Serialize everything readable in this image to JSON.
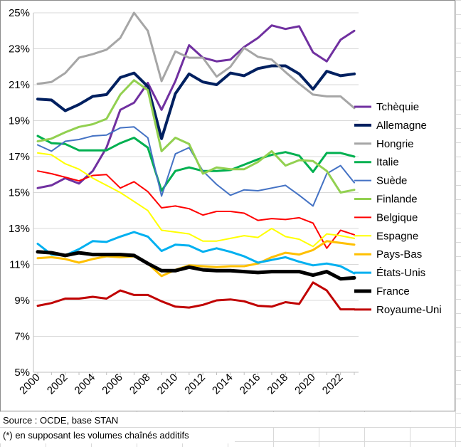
{
  "chart_data": {
    "type": "line",
    "title": "",
    "xlabel": "",
    "ylabel": "",
    "ylim": [
      5,
      25
    ],
    "y_ticks": [
      "5%",
      "7%",
      "9%",
      "11%",
      "13%",
      "15%",
      "17%",
      "19%",
      "21%",
      "23%",
      "25%"
    ],
    "x_ticks": [
      "2000",
      "2002",
      "2004",
      "2006",
      "2008",
      "2010",
      "2012",
      "2014",
      "2016",
      "2018",
      "2020",
      "2022"
    ],
    "x": [
      2000,
      2001,
      2002,
      2003,
      2004,
      2005,
      2006,
      2007,
      2008,
      2009,
      2010,
      2011,
      2012,
      2013,
      2014,
      2015,
      2016,
      2017,
      2018,
      2019,
      2020,
      2021,
      2022,
      2023
    ],
    "grid": true,
    "legend_position": "right",
    "series": [
      {
        "name": "Tchèquie",
        "color": "#7030a0",
        "width": 3,
        "values": [
          15.25,
          15.4,
          15.8,
          15.5,
          16.2,
          17.5,
          19.6,
          20.0,
          21.1,
          19.6,
          21.2,
          23.2,
          22.5,
          22.3,
          22.4,
          23.1,
          23.6,
          24.3,
          24.1,
          24.25,
          22.8,
          22.3,
          23.5,
          24.0
        ]
      },
      {
        "name": "Allemagne",
        "color": "#002060",
        "width": 4,
        "values": [
          20.2,
          20.15,
          19.55,
          19.9,
          20.35,
          20.45,
          21.4,
          21.65,
          20.9,
          18.0,
          20.5,
          21.6,
          21.15,
          21.0,
          21.65,
          21.5,
          21.9,
          22.05,
          22.05,
          21.6,
          20.75,
          21.75,
          21.5,
          21.6
        ]
      },
      {
        "name": "Hongrie",
        "color": "#a6a6a6",
        "width": 3,
        "values": [
          21.05,
          21.15,
          21.65,
          22.5,
          22.7,
          22.95,
          23.6,
          25.0,
          24.0,
          21.2,
          22.85,
          22.5,
          22.5,
          21.45,
          22.0,
          23.05,
          22.55,
          22.4,
          21.7,
          21.05,
          20.45,
          20.35,
          20.35,
          19.7
        ]
      },
      {
        "name": "Italie",
        "color": "#00b050",
        "width": 3,
        "values": [
          18.15,
          17.75,
          17.7,
          17.35,
          17.35,
          17.35,
          17.75,
          18.05,
          17.5,
          15.1,
          16.2,
          16.4,
          16.2,
          16.2,
          16.25,
          16.55,
          16.85,
          17.1,
          17.25,
          17.05,
          16.15,
          17.2,
          17.2,
          17.0
        ]
      },
      {
        "name": "Suède",
        "color": "#4472c4",
        "width": 2,
        "values": [
          17.65,
          17.3,
          17.85,
          17.95,
          18.15,
          18.2,
          18.6,
          18.65,
          18.05,
          14.8,
          17.15,
          17.5,
          16.2,
          15.45,
          14.85,
          15.15,
          15.1,
          15.25,
          15.4,
          14.85,
          14.25,
          16.05,
          16.5,
          15.55
        ]
      },
      {
        "name": "Finlande",
        "color": "#92d050",
        "width": 3,
        "values": [
          17.85,
          18.0,
          18.35,
          18.65,
          18.8,
          19.1,
          20.45,
          21.25,
          20.7,
          17.3,
          18.05,
          17.7,
          16.05,
          16.4,
          16.3,
          16.3,
          16.7,
          17.3,
          16.5,
          16.8,
          16.75,
          16.2,
          15.0,
          15.15
        ]
      },
      {
        "name": "Belgique",
        "color": "#ff0000",
        "width": 2,
        "values": [
          16.2,
          16.05,
          15.85,
          15.65,
          15.95,
          16.0,
          15.25,
          15.6,
          15.05,
          14.15,
          14.25,
          14.1,
          13.75,
          13.95,
          13.95,
          13.85,
          13.45,
          13.55,
          13.5,
          13.6,
          13.3,
          11.9,
          12.9,
          12.65
        ]
      },
      {
        "name": "Espagne",
        "color": "#ffff00",
        "width": 2,
        "values": [
          17.2,
          17.1,
          16.6,
          16.3,
          15.8,
          15.4,
          15.0,
          14.5,
          14.0,
          12.9,
          12.8,
          12.7,
          12.3,
          12.3,
          12.45,
          12.6,
          12.5,
          13.0,
          12.55,
          12.4,
          12.0,
          12.7,
          12.6,
          12.45
        ]
      },
      {
        "name": "Pays-Bas",
        "color": "#ffc000",
        "width": 3,
        "values": [
          11.35,
          11.4,
          11.3,
          11.1,
          11.3,
          11.45,
          11.4,
          11.45,
          11.05,
          10.35,
          10.7,
          10.95,
          10.9,
          10.85,
          10.9,
          10.9,
          11.05,
          11.4,
          11.65,
          11.55,
          11.8,
          12.3,
          12.2,
          12.1
        ]
      },
      {
        "name": "États-Unis",
        "color": "#00b0f0",
        "width": 3,
        "values": [
          12.15,
          11.55,
          11.5,
          11.85,
          12.3,
          12.25,
          12.55,
          12.8,
          12.55,
          11.75,
          12.1,
          12.05,
          11.7,
          11.9,
          11.7,
          11.45,
          11.1,
          11.25,
          11.4,
          11.15,
          10.95,
          11.05,
          10.9,
          10.5
        ]
      },
      {
        "name": "France",
        "color": "#000000",
        "width": 5,
        "values": [
          11.7,
          11.65,
          11.5,
          11.65,
          11.55,
          11.55,
          11.55,
          11.5,
          11.05,
          10.65,
          10.65,
          10.85,
          10.7,
          10.65,
          10.65,
          10.6,
          10.55,
          10.6,
          10.6,
          10.6,
          10.4,
          10.6,
          10.2,
          10.25
        ]
      },
      {
        "name": "Royaume-Uni",
        "color": "#c00000",
        "width": 3,
        "values": [
          8.7,
          8.85,
          9.1,
          9.1,
          9.2,
          9.1,
          9.55,
          9.3,
          9.3,
          8.95,
          8.65,
          8.6,
          8.75,
          9.0,
          9.05,
          8.95,
          8.7,
          8.65,
          8.9,
          8.8,
          10.0,
          9.55,
          8.5,
          8.5
        ]
      }
    ]
  },
  "footer": {
    "source": "Source : OCDE, base STAN",
    "note": "(*) en supposant les volumes chaînés additifs"
  }
}
